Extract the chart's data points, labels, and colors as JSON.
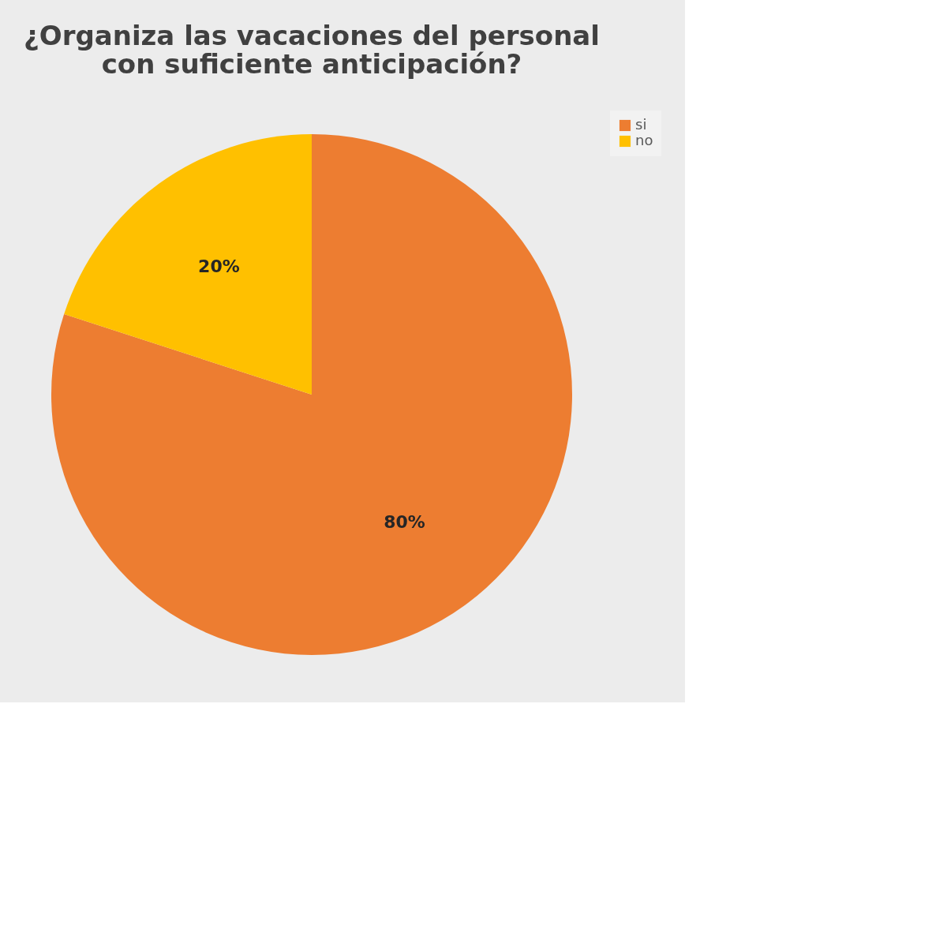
{
  "chart_data": {
    "type": "pie",
    "title": "¿Organiza las vacaciones del personal\ncon suficiente anticipación?",
    "categories": [
      "si",
      "no"
    ],
    "values": [
      80,
      20
    ],
    "colors": [
      "#ed7d31",
      "#ffc000"
    ],
    "value_labels": [
      "80%",
      "20%"
    ],
    "legend": "right"
  }
}
